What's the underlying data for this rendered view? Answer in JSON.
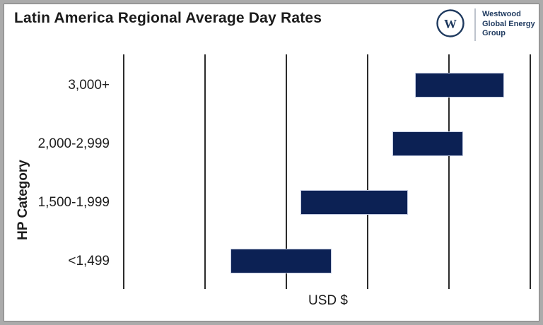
{
  "frame": {
    "outer_border_color": "#ababab",
    "inner_border_color": "#7f7f7f",
    "background": "#ffffff"
  },
  "header": {
    "title": "Latin America Regional Average Day Rates",
    "logo": {
      "monogram": "W",
      "org_lines": [
        "Westwood",
        "Global Energy",
        "Group"
      ],
      "navy": "#1f3a5f",
      "divider_color": "#bdc3cc"
    }
  },
  "chart_data": {
    "type": "bar",
    "subtype": "horizontal-floating-range",
    "title": "Latin America Regional Average Day Rates",
    "xlabel": "USD $",
    "ylabel": "HP Category",
    "categories": [
      "<1,499",
      "1,500-1,999",
      "2,000-2,999",
      "3,000+"
    ],
    "series": [
      {
        "name": "Average day rate range",
        "ranges_gridline_units": [
          [
            1.31,
            2.56
          ],
          [
            2.17,
            3.5
          ],
          [
            3.3,
            4.17
          ],
          [
            3.58,
            4.68
          ]
        ]
      }
    ],
    "x_axis": {
      "tick_labels_visible": false,
      "gridline_count": 6,
      "unit_range": [
        0,
        5
      ]
    },
    "row_order_top_to_bottom": [
      "3,000+",
      "2,000-2,999",
      "1,500-1,999",
      "<1,499"
    ],
    "legend": "none",
    "grid_on": true,
    "bar_color": "#0c2154",
    "bar_border_color": "#c3cbe1",
    "gridline_color": "#2b2b2b"
  }
}
